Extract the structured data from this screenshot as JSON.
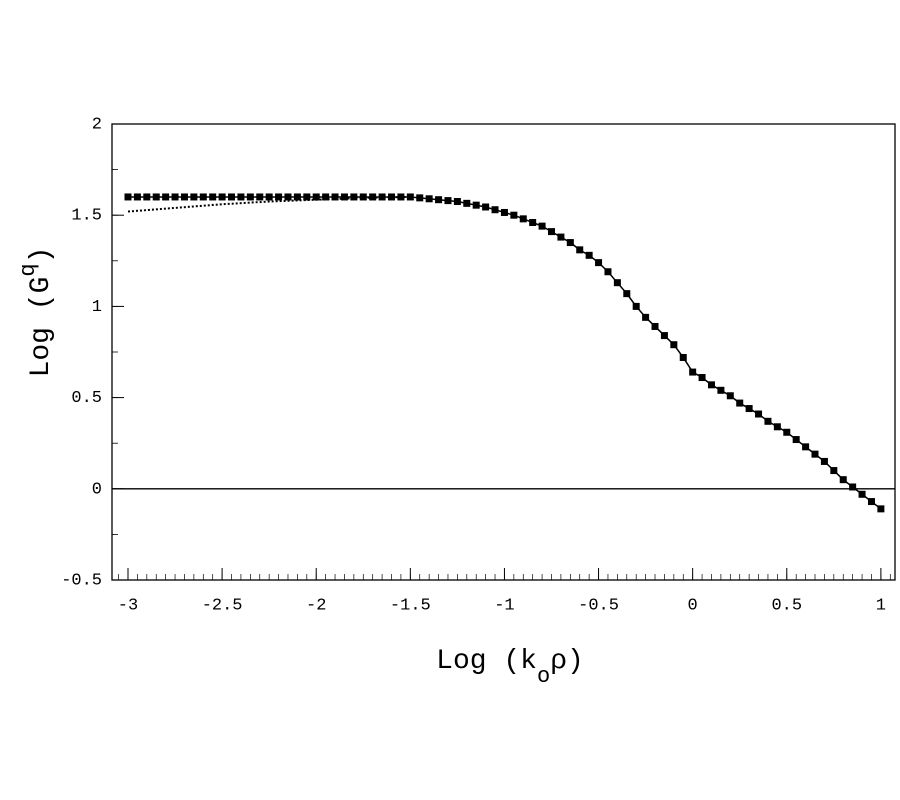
{
  "chart_data": {
    "type": "line",
    "x_label": {
      "text": "Log (k",
      "subscript": "o",
      "close": "ρ)"
    },
    "y_label": {
      "text": "Log (G",
      "superscript": "q",
      "close": ")"
    },
    "xlim": [
      -3.085,
      1.075
    ],
    "ylim": [
      -0.5,
      2
    ],
    "xticks": [
      -3,
      -2.5,
      -2,
      -1.5,
      -1,
      -0.5,
      0,
      0.5,
      1
    ],
    "yticks": [
      -0.5,
      0,
      0.5,
      1,
      1.5,
      2
    ],
    "x_minor_tick_step": 0.05,
    "y_minor_tick_step": 0.25,
    "hline": 0,
    "series": [
      {
        "color": "#000000",
        "marker": "square",
        "line": "solid",
        "x": [
          -3,
          -2.95,
          -2.9,
          -2.85,
          -2.8,
          -2.75,
          -2.7,
          -2.65,
          -2.6,
          -2.55,
          -2.5,
          -2.45,
          -2.4,
          -2.35,
          -2.3,
          -2.25,
          -2.2,
          -2.15,
          -2.1,
          -2.05,
          -2,
          -1.95,
          -1.9,
          -1.85,
          -1.8,
          -1.75,
          -1.7,
          -1.65,
          -1.6,
          -1.55,
          -1.5,
          -1.45,
          -1.4,
          -1.35,
          -1.3,
          -1.25,
          -1.2,
          -1.15,
          -1.1,
          -1.05,
          -1,
          -0.95,
          -0.9,
          -0.85,
          -0.8,
          -0.75,
          -0.7,
          -0.65,
          -0.6,
          -0.55,
          -0.5,
          -0.45,
          -0.4,
          -0.35,
          -0.3,
          -0.25,
          -0.2,
          -0.15,
          -0.1,
          -0.05,
          0,
          0.05,
          0.1,
          0.15,
          0.2,
          0.25,
          0.3,
          0.35,
          0.4,
          0.45,
          0.5,
          0.55,
          0.6,
          0.65,
          0.7,
          0.75,
          0.8,
          0.85,
          0.9,
          0.95,
          1
        ],
        "values": [
          1.6,
          1.6,
          1.6,
          1.6,
          1.6,
          1.6,
          1.6,
          1.6,
          1.6,
          1.6,
          1.6,
          1.6,
          1.6,
          1.6,
          1.6,
          1.6,
          1.6,
          1.6,
          1.6,
          1.6,
          1.6,
          1.6,
          1.6,
          1.6,
          1.6,
          1.6,
          1.6,
          1.6,
          1.6,
          1.6,
          1.6,
          1.595,
          1.59,
          1.585,
          1.58,
          1.575,
          1.565,
          1.555,
          1.545,
          1.53,
          1.515,
          1.5,
          1.48,
          1.46,
          1.44,
          1.41,
          1.38,
          1.35,
          1.31,
          1.28,
          1.24,
          1.19,
          1.13,
          1.07,
          1.0,
          0.94,
          0.89,
          0.84,
          0.79,
          0.72,
          0.64,
          0.61,
          0.57,
          0.54,
          0.51,
          0.47,
          0.44,
          0.41,
          0.37,
          0.34,
          0.31,
          0.27,
          0.23,
          0.19,
          0.15,
          0.1,
          0.05,
          0.01,
          -0.03,
          -0.07,
          -0.11
        ]
      },
      {
        "color": "#000000",
        "marker": "none",
        "line": "dotted",
        "x": [
          -3,
          -2.75,
          -2.5,
          -2.25,
          -2,
          -1.75,
          -1.5
        ],
        "values": [
          1.52,
          1.54,
          1.56,
          1.575,
          1.585,
          1.595,
          1.6
        ]
      }
    ]
  }
}
